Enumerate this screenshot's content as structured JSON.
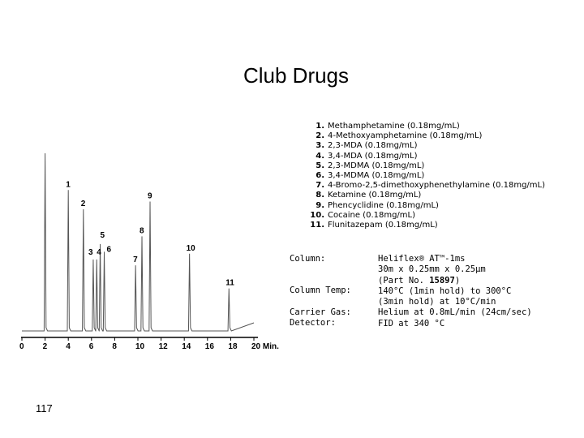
{
  "title": "Club Drugs",
  "page_number": "117",
  "peak_list": [
    {
      "num": "1.",
      "text": "Methamphetamine (0.18mg/mL)"
    },
    {
      "num": "2.",
      "text": "4-Methoxyamphetamine (0.18mg/mL)"
    },
    {
      "num": "3.",
      "text": "2,3-MDA (0.18mg/mL)"
    },
    {
      "num": "4.",
      "text": "3,4-MDA (0.18mg/mL)"
    },
    {
      "num": "5.",
      "text": "2,3-MDMA (0.18mg/mL)"
    },
    {
      "num": "6.",
      "text": "3,4-MDMA (0.18mg/mL)"
    },
    {
      "num": "7.",
      "text": "4-Bromo-2,5-dimethoxyphenethylamine (0.18mg/mL)"
    },
    {
      "num": "8.",
      "text": "Ketamine (0.18mg/mL)"
    },
    {
      "num": "9.",
      "text": "Phencyclidine (0.18mg/mL)"
    },
    {
      "num": "10.",
      "text": "Cocaine (0.18mg/mL)"
    },
    {
      "num": "11.",
      "text": "Flunitazepam (0.18mg/mL)"
    }
  ],
  "conditions": {
    "labels": [
      "Column:",
      "Column Temp:",
      "Carrier Gas:",
      "Detector:"
    ],
    "column_lines": [
      "Heliflex® AT™-1ms",
      "30m x 0.25mm x 0.25µm"
    ],
    "part_no_prefix": "(Part No. ",
    "part_no": "15897",
    "part_no_suffix": ")",
    "temp_lines": [
      "140°C (1min hold) to 300°C",
      "(3min hold) at 10°C/min"
    ],
    "carrier_gas": "Helium at 0.8mL/min (24cm/sec)",
    "detector": "FID at 340 °C"
  },
  "chart_data": {
    "type": "line",
    "x_ticks": [
      "0",
      "2",
      "4",
      "6",
      "8",
      "10",
      "12",
      "14",
      "16",
      "18",
      "20 Min."
    ],
    "xlim": [
      0,
      20
    ],
    "grid": false,
    "peaks": [
      {
        "label": "",
        "x": 2.0,
        "height": 0.92
      },
      {
        "label": "1",
        "x": 4.0,
        "height": 0.73
      },
      {
        "label": "2",
        "x": 5.3,
        "height": 0.63
      },
      {
        "label": "3",
        "x": 6.15,
        "height": 0.37
      },
      {
        "label": "4",
        "x": 6.45,
        "height": 0.37
      },
      {
        "label": "5",
        "x": 6.75,
        "height": 0.45
      },
      {
        "label": "6",
        "x": 7.1,
        "height": 0.41
      },
      {
        "label": "7",
        "x": 9.8,
        "height": 0.34
      },
      {
        "label": "8",
        "x": 10.35,
        "height": 0.49
      },
      {
        "label": "9",
        "x": 11.05,
        "height": 0.67
      },
      {
        "label": "10",
        "x": 14.45,
        "height": 0.4
      },
      {
        "label": "11",
        "x": 17.85,
        "height": 0.22
      }
    ]
  }
}
